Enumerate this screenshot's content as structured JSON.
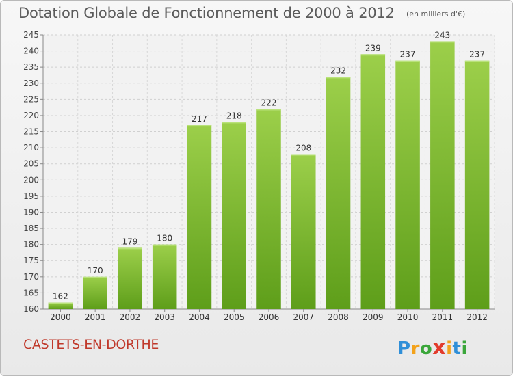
{
  "chart_data": {
    "type": "bar",
    "title": "Dotation Globale de Fonctionnement de 2000 à 2012",
    "unit_note": "(en milliers d'€)",
    "categories": [
      "2000",
      "2001",
      "2002",
      "2003",
      "2004",
      "2005",
      "2006",
      "2007",
      "2008",
      "2009",
      "2010",
      "2011",
      "2012"
    ],
    "values": [
      162,
      170,
      179,
      180,
      217,
      218,
      222,
      208,
      232,
      239,
      237,
      243,
      237
    ],
    "ylim": [
      160,
      245
    ],
    "yticks": [
      160,
      165,
      170,
      175,
      180,
      185,
      190,
      195,
      200,
      205,
      210,
      215,
      220,
      225,
      230,
      235,
      240,
      245
    ],
    "grid": true,
    "bar_colors": {
      "light": "#9ccf4a",
      "dark": "#5e9e1a"
    }
  },
  "footer": {
    "commune": "CASTETS-EN-DORTHE",
    "logo_letters": [
      "P",
      "r",
      "o",
      "x",
      "i",
      "t",
      "i"
    ],
    "logo_colors": [
      "#2f8fd8",
      "#f3a21b",
      "#3aa63a",
      "#e23b2c",
      "#f3a21b",
      "#2f8fd8",
      "#3aa63a"
    ]
  }
}
